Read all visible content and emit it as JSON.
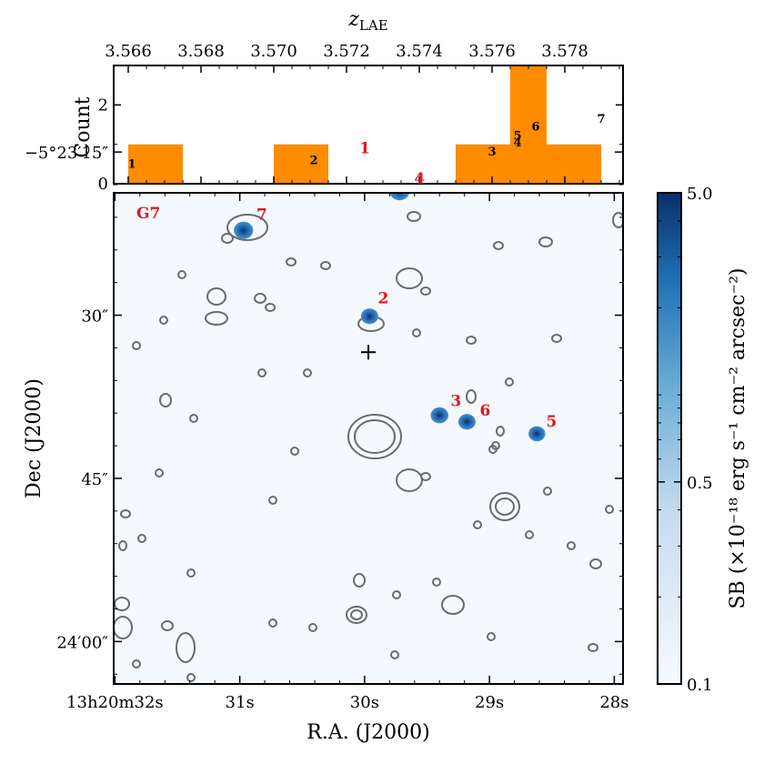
{
  "chart_data": [
    {
      "type": "bar",
      "name": "redshift-histogram",
      "xlabel": "z",
      "xlabel_sub": "LAE",
      "ylabel": "Count",
      "xlim": [
        3.5656,
        3.5796
      ],
      "ylim": [
        0,
        3
      ],
      "xticks": [
        "3.566",
        "3.568",
        "3.570",
        "3.572",
        "3.574",
        "3.576",
        "3.578"
      ],
      "yticks": [
        "0",
        "2"
      ],
      "bar_color": "#ff8c00",
      "bins": [
        {
          "x0": 3.566,
          "x1": 3.5675,
          "count": 1
        },
        {
          "x0": 3.57,
          "x1": 3.5715,
          "count": 1
        },
        {
          "x0": 3.575,
          "x1": 3.5765,
          "count": 1
        },
        {
          "x0": 3.5765,
          "x1": 3.5775,
          "count": 3
        },
        {
          "x0": 3.5775,
          "x1": 3.579,
          "count": 1
        }
      ],
      "sources": [
        {
          "label": "1",
          "z": 3.5661,
          "y": 0.4
        },
        {
          "label": "2",
          "z": 3.5711,
          "y": 0.5
        },
        {
          "label": "3",
          "z": 3.576,
          "y": 0.72
        },
        {
          "label": "5",
          "z": 3.5767,
          "y": 1.12
        },
        {
          "label": "4",
          "z": 3.5767,
          "y": 0.95
        },
        {
          "label": "6",
          "z": 3.5772,
          "y": 1.35
        },
        {
          "label": "7",
          "z": 3.579,
          "y": 1.55
        }
      ]
    },
    {
      "type": "heatmap",
      "name": "surface-brightness-map",
      "field_label": "G7",
      "xlabel": "R.A. (J2000)",
      "ylabel": "Dec (J2000)",
      "ra_ticks": [
        {
          "sec": 32,
          "label": "13h20m32s"
        },
        {
          "sec": 31,
          "label": "31s"
        },
        {
          "sec": 30,
          "label": "30s"
        },
        {
          "sec": 29,
          "label": "29s"
        },
        {
          "sec": 28,
          "label": "28s"
        }
      ],
      "ra_range_s": [
        32.01,
        27.93
      ],
      "dec_range_arcsec": [
        78.75,
        123.9
      ],
      "dec_ticks": [
        {
          "arcsec": 75,
          "label": "−5°23′15″"
        },
        {
          "arcsec": 90,
          "label": "30″"
        },
        {
          "arcsec": 105,
          "label": "45″"
        },
        {
          "arcsec": 120,
          "label": "24′00″"
        }
      ],
      "center_marker": {
        "ra_s": 29.97,
        "dec_arcsec": 93.4
      },
      "sources": [
        {
          "label": "7",
          "ra_s": 30.97,
          "dec_arcsec": 82.2,
          "sb": 3.5
        },
        {
          "label": "1",
          "ra_s": 30.13,
          "dec_arcsec": 76.3,
          "sb": 2.0
        },
        {
          "label": "4",
          "ra_s": 29.72,
          "dec_arcsec": 78.6,
          "sb": 5.0
        },
        {
          "label": "2",
          "ra_s": 29.96,
          "dec_arcsec": 90.1,
          "sb": 1.5
        },
        {
          "label": "3",
          "ra_s": 29.4,
          "dec_arcsec": 99.2,
          "sb": 1.8
        },
        {
          "label": "6",
          "ra_s": 29.18,
          "dec_arcsec": 99.8,
          "sb": 1.5
        },
        {
          "label": "5",
          "ra_s": 28.62,
          "dec_arcsec": 100.9,
          "sb": 1.2
        }
      ],
      "colorbar": {
        "label": "SB (×10⁻¹⁸ erg s⁻¹ cm⁻² arcsec⁻²)",
        "ticks": [
          "5.0",
          "0.5",
          "0.1"
        ],
        "scale": "log",
        "range": [
          0.1,
          5.0
        ],
        "colors": [
          "#f7fbff",
          "#c6dbef",
          "#6baed6",
          "#2171b5",
          "#08306b"
        ]
      }
    }
  ]
}
